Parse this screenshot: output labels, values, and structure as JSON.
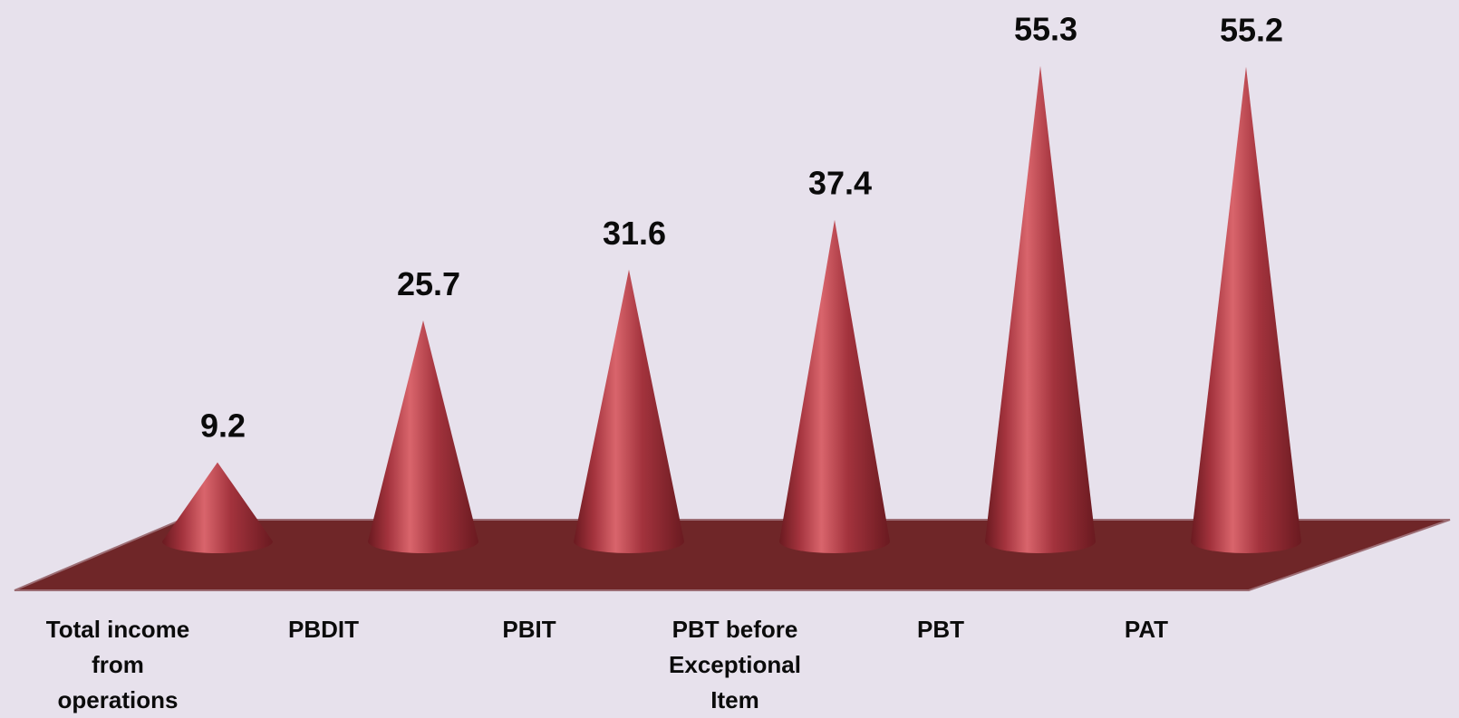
{
  "chart_data": {
    "type": "bar",
    "categories": [
      [
        "Total income",
        "from",
        "operations"
      ],
      [
        "PBDIT"
      ],
      [
        "PBIT"
      ],
      [
        "PBT before",
        "Exceptional",
        "Item"
      ],
      [
        "PBT"
      ],
      [
        "PAT"
      ]
    ],
    "values": [
      9.2,
      25.7,
      31.6,
      37.4,
      55.3,
      55.2
    ],
    "data_labels": [
      "9.2",
      "25.7",
      "31.6",
      "37.4",
      "55.3",
      "55.2"
    ],
    "title": "",
    "xlabel": "",
    "ylabel": "",
    "ylim": [
      0,
      56
    ],
    "grid": false,
    "legend": "none",
    "mark_shape": "3d-cone",
    "colors": {
      "background": "#e7e1ec",
      "cone": "#a3333d",
      "cone_light": "#d9656c",
      "cone_dark": "#6a1a20",
      "floor": "#6f2628",
      "floor_edge": "#9c6d74"
    }
  }
}
